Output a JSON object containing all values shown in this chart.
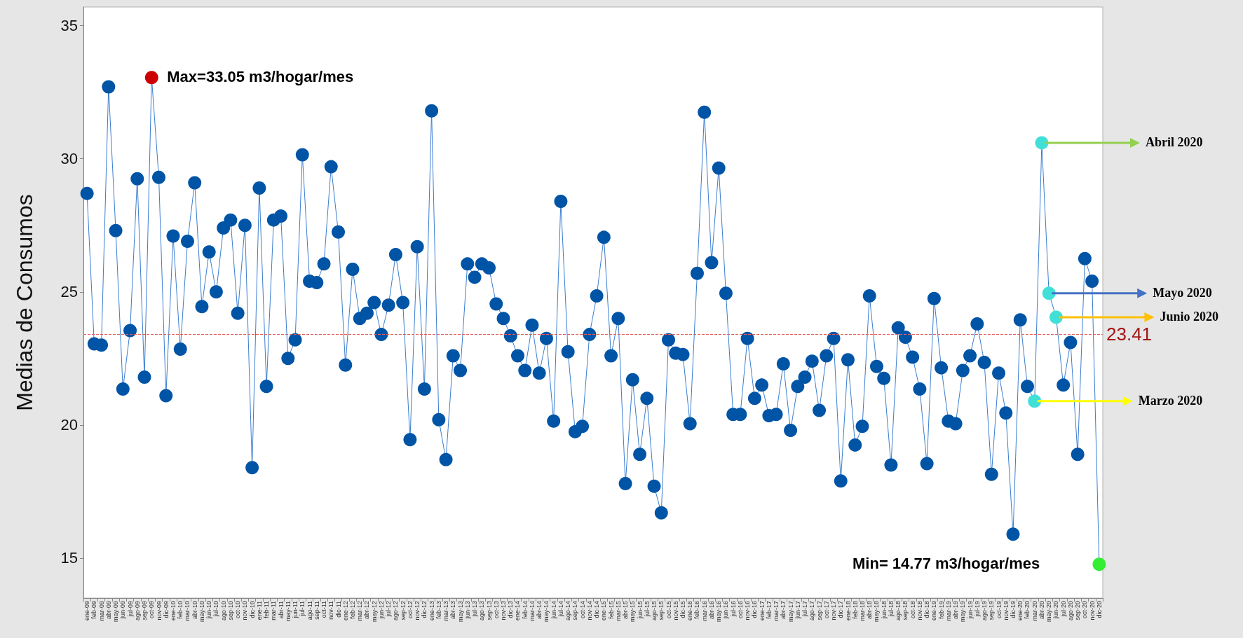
{
  "chart_data": {
    "type": "line",
    "ylabel": "Medias de Consumos",
    "categories": [
      "ene-09",
      "feb-09",
      "mar-09",
      "abr-09",
      "may-09",
      "jun-09",
      "jul-09",
      "ago-09",
      "sep-09",
      "oct-09",
      "nov-09",
      "dic-09",
      "ene-10",
      "feb-10",
      "mar-10",
      "abr-10",
      "may-10",
      "jun-10",
      "jul-10",
      "ago-10",
      "sep-10",
      "oct-10",
      "nov-10",
      "dic-10",
      "ene-11",
      "feb-11",
      "mar-11",
      "abr-11",
      "may-11",
      "jun-11",
      "jul-11",
      "ago-11",
      "sep-11",
      "oct-11",
      "nov-11",
      "dic-11",
      "ene-12",
      "feb-12",
      "mar-12",
      "abr-12",
      "may-12",
      "jun-12",
      "jul-12",
      "ago-12",
      "sep-12",
      "oct-12",
      "nov-12",
      "dic-12",
      "ene-13",
      "feb-13",
      "mar-13",
      "abr-13",
      "may-13",
      "jun-13",
      "jul-13",
      "ago-13",
      "sep-13",
      "oct-13",
      "nov-13",
      "dic-13",
      "ene-14",
      "feb-14",
      "mar-14",
      "abr-14",
      "may-14",
      "jun-14",
      "jul-14",
      "ago-14",
      "sep-14",
      "oct-14",
      "nov-14",
      "dic-14",
      "ene-15",
      "feb-15",
      "mar-15",
      "abr-15",
      "may-15",
      "jun-15",
      "jul-15",
      "ago-15",
      "sep-15",
      "oct-15",
      "nov-15",
      "dic-15",
      "ene-16",
      "feb-16",
      "mar-16",
      "abr-16",
      "may-16",
      "jun-16",
      "jul-16",
      "oct-16",
      "nov-16",
      "dic-16",
      "ene-17",
      "feb-17",
      "mar-17",
      "abr-17",
      "may-17",
      "jun-17",
      "jul-17",
      "ago-17",
      "sep-17",
      "oct-17",
      "nov-17",
      "dic-17",
      "ene-18",
      "feb-18",
      "mar-18",
      "abr-18",
      "may-18",
      "jun-18",
      "jul-18",
      "ago-18",
      "sep-18",
      "oct-18",
      "nov-18",
      "dic-18",
      "ene-19",
      "feb-19",
      "mar-19",
      "abr-19",
      "may-19",
      "jun-19",
      "jul-19",
      "ago-19",
      "sep-19",
      "oct-19",
      "nov-19",
      "dic-19",
      "ene-20",
      "feb-20",
      "mar-20",
      "abr-20",
      "may-20",
      "jun-20",
      "jul-20",
      "ago-20",
      "sep-20",
      "oct-20",
      "nov-20",
      "dic-20"
    ],
    "series": [
      {
        "color": "#3a7dd0",
        "values": [
          28.7,
          23.05,
          23.0,
          32.7,
          27.3,
          21.35,
          23.55,
          29.25,
          21.8,
          33.05,
          29.3,
          21.1,
          27.1,
          22.85,
          26.9,
          29.1,
          24.45,
          26.5,
          25.0,
          27.4,
          27.7,
          24.2,
          27.5,
          18.4,
          28.9,
          21.45,
          27.7,
          27.85,
          22.5,
          23.2,
          30.15,
          25.4,
          25.35,
          26.05,
          29.7,
          27.25,
          22.25,
          25.85,
          24.0,
          24.2,
          24.6,
          23.4,
          24.5,
          26.4,
          24.6,
          19.45,
          26.7,
          21.35,
          31.8,
          20.2,
          18.7,
          22.6,
          22.05,
          26.05,
          25.55,
          26.05,
          25.9,
          24.55,
          24.0,
          23.35,
          22.6,
          22.05,
          23.75,
          21.95,
          23.25,
          20.15,
          28.4,
          22.75,
          19.75,
          19.95,
          23.4,
          24.85,
          27.05,
          22.6,
          24.0,
          17.8,
          21.7,
          18.9,
          21.0,
          17.7,
          16.7,
          23.2,
          22.7,
          22.65,
          20.05,
          25.7,
          31.75,
          26.1,
          29.65,
          24.95,
          20.4,
          20.4,
          23.25,
          21.0,
          21.5,
          20.35,
          20.4,
          22.3,
          19.8,
          21.45,
          21.8,
          22.4,
          20.55,
          22.6,
          23.25,
          17.9,
          22.45,
          19.25,
          19.95,
          24.85,
          22.2,
          21.75,
          18.5,
          23.65,
          23.3,
          22.55,
          21.35,
          18.55,
          24.75,
          22.15,
          20.15,
          20.05,
          22.05,
          22.6,
          23.8,
          22.35,
          18.15,
          21.95,
          20.45,
          15.9,
          23.95,
          21.45,
          20.9,
          30.6,
          24.95,
          24.05,
          21.5,
          23.1,
          18.9,
          26.25,
          25.4,
          14.77
        ],
        "colors": [
          "#0054a6",
          "#0054a6",
          "#0054a6",
          "#0054a6",
          "#0054a6",
          "#0054a6",
          "#0054a6",
          "#0054a6",
          "#0054a6",
          "#cc0000",
          "#0054a6",
          "#0054a6",
          "#0054a6",
          "#0054a6",
          "#0054a6",
          "#0054a6",
          "#0054a6",
          "#0054a6",
          "#0054a6",
          "#0054a6",
          "#0054a6",
          "#0054a6",
          "#0054a6",
          "#0054a6",
          "#0054a6",
          "#0054a6",
          "#0054a6",
          "#0054a6",
          "#0054a6",
          "#0054a6",
          "#0054a6",
          "#0054a6",
          "#0054a6",
          "#0054a6",
          "#0054a6",
          "#0054a6",
          "#0054a6",
          "#0054a6",
          "#0054a6",
          "#0054a6",
          "#0054a6",
          "#0054a6",
          "#0054a6",
          "#0054a6",
          "#0054a6",
          "#0054a6",
          "#0054a6",
          "#0054a6",
          "#0054a6",
          "#0054a6",
          "#0054a6",
          "#0054a6",
          "#0054a6",
          "#0054a6",
          "#0054a6",
          "#0054a6",
          "#0054a6",
          "#0054a6",
          "#0054a6",
          "#0054a6",
          "#0054a6",
          "#0054a6",
          "#0054a6",
          "#0054a6",
          "#0054a6",
          "#0054a6",
          "#0054a6",
          "#0054a6",
          "#0054a6",
          "#0054a6",
          "#0054a6",
          "#0054a6",
          "#0054a6",
          "#0054a6",
          "#0054a6",
          "#0054a6",
          "#0054a6",
          "#0054a6",
          "#0054a6",
          "#0054a6",
          "#0054a6",
          "#0054a6",
          "#0054a6",
          "#0054a6",
          "#0054a6",
          "#0054a6",
          "#0054a6",
          "#0054a6",
          "#0054a6",
          "#0054a6",
          "#0054a6",
          "#0054a6",
          "#0054a6",
          "#0054a6",
          "#0054a6",
          "#0054a6",
          "#0054a6",
          "#0054a6",
          "#0054a6",
          "#0054a6",
          "#0054a6",
          "#0054a6",
          "#0054a6",
          "#0054a6",
          "#0054a6",
          "#0054a6",
          "#0054a6",
          "#0054a6",
          "#0054a6",
          "#0054a6",
          "#0054a6",
          "#0054a6",
          "#0054a6",
          "#0054a6",
          "#0054a6",
          "#0054a6",
          "#0054a6",
          "#0054a6",
          "#0054a6",
          "#0054a6",
          "#0054a6",
          "#0054a6",
          "#0054a6",
          "#0054a6",
          "#0054a6",
          "#0054a6",
          "#0054a6",
          "#0054a6",
          "#0054a6",
          "#0054a6",
          "#0054a6",
          "#0054a6",
          "#40e0d8",
          "#40e0d8",
          "#40e0d8",
          "#40e0d8",
          "#0054a6",
          "#0054a6",
          "#0054a6",
          "#0054a6",
          "#0054a6",
          "#33ee33"
        ]
      }
    ],
    "ylim": [
      13.5,
      35.7
    ],
    "yticks": [
      15,
      20,
      25,
      30,
      35
    ],
    "marker": "circle",
    "line_style": "solid",
    "ref_lines": [
      {
        "axis": "y",
        "value": 23.41,
        "label": "23.41",
        "color": "#e06060",
        "line_style": "dashed"
      }
    ],
    "annotations": [
      {
        "text": "Max=33.05 m3/hogar/mes",
        "x": "oct-09",
        "y": 33.05
      },
      "Min= 14.77 m3/hogar/mes",
      {
        "text": "Abril 2020",
        "x": "abr-20",
        "y": 30.6
      },
      {
        "text": "Mayo 2020",
        "x": "may-20",
        "y": 24.95
      },
      {
        "text": "Junio 2020",
        "x": "jun-20",
        "y": 24.05
      },
      {
        "text": "Marzo 2020",
        "x": "mar-20",
        "y": 20.9
      }
    ]
  }
}
